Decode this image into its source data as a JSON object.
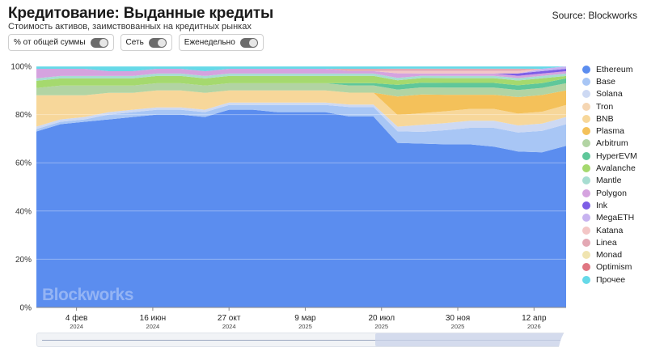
{
  "header": {
    "title": "Кредитование: Выданные кредиты",
    "subtitle": "Стоимость активов, заимствованных на кредитных рынках",
    "source": "Source: Blockworks"
  },
  "toggles": [
    {
      "label": "% от общей суммы",
      "on": true
    },
    {
      "label": "Сеть",
      "on": true
    },
    {
      "label": "Еженедельно",
      "on": true
    }
  ],
  "watermark": "Blockworks",
  "chart_data": {
    "type": "area",
    "stacked": true,
    "normalized_percent": true,
    "title": "Кредитование: Выданные кредиты",
    "subtitle": "Стоимость активов, заимствованных на кредитных рынках",
    "xlabel": "",
    "ylabel": "",
    "ylim": [
      0,
      100
    ],
    "yticks": [
      "0%",
      "20%",
      "40%",
      "60%",
      "80%",
      "100%"
    ],
    "xticks": [
      {
        "date": "2024-02-04",
        "label": "4 фев",
        "year": "2024"
      },
      {
        "date": "2024-06-16",
        "label": "16 июн",
        "year": "2024"
      },
      {
        "date": "2024-10-27",
        "label": "27 окт",
        "year": "2024"
      },
      {
        "date": "2025-03-09",
        "label": "9 мар",
        "year": "2025"
      },
      {
        "date": "2025-07-20",
        "label": "20 июл",
        "year": "2025"
      },
      {
        "date": "2025-11-30",
        "label": "30 ноя",
        "year": "2025"
      },
      {
        "date": "2026-04-12",
        "label": "12 апр",
        "year": "2026"
      }
    ],
    "x": [
      "2023-11-26",
      "2024-01-07",
      "2024-02-18",
      "2024-03-31",
      "2024-05-12",
      "2024-06-23",
      "2024-08-04",
      "2024-09-15",
      "2024-10-27",
      "2024-12-08",
      "2025-01-19",
      "2025-03-02",
      "2025-04-13",
      "2025-05-25",
      "2025-07-06",
      "2025-08-17",
      "2025-09-28",
      "2025-11-09",
      "2025-12-21",
      "2026-02-01",
      "2026-03-15",
      "2026-04-26",
      "2026-06-07"
    ],
    "legend_position": "right",
    "grid": true,
    "series": [
      {
        "name": "Ethereum",
        "color": "#5b8def",
        "icon": "ethereum-icon",
        "values": [
          73,
          76,
          77,
          78,
          79,
          80,
          80,
          79,
          82,
          82,
          81,
          81,
          81,
          80,
          80,
          71,
          70,
          69,
          69,
          68,
          66,
          65,
          67
        ]
      },
      {
        "name": "Base",
        "color": "#a8c6f5",
        "icon": "base-icon",
        "values": [
          1,
          1,
          1,
          2,
          2,
          2,
          2,
          2,
          2,
          2,
          3,
          3,
          3,
          4,
          4,
          5,
          5,
          6,
          7,
          8,
          8,
          9,
          9
        ]
      },
      {
        "name": "Solana",
        "color": "#cdd9f3",
        "icon": "solana-icon",
        "values": [
          1,
          1,
          1,
          1,
          1,
          1,
          1,
          1,
          1,
          1,
          1,
          1,
          1,
          1,
          1,
          2,
          3,
          3,
          3,
          3,
          3,
          3,
          3
        ]
      },
      {
        "name": "Tron",
        "color": "#f5d6b3",
        "icon": "tron-icon",
        "values": [
          0,
          0,
          0,
          0,
          0,
          0,
          0,
          0,
          0,
          0,
          0,
          0,
          0,
          0,
          0,
          0,
          0,
          0,
          0,
          0,
          0,
          0,
          0
        ]
      },
      {
        "name": "BNB",
        "color": "#f7d79a",
        "icon": "bnb-icon",
        "values": [
          13,
          10,
          9,
          8,
          7,
          7,
          7,
          7,
          5,
          5,
          5,
          5,
          5,
          5,
          5,
          5,
          5,
          5,
          5,
          5,
          5,
          5,
          5
        ]
      },
      {
        "name": "Plasma",
        "color": "#f4c15a",
        "icon": "plasma-icon",
        "values": [
          0,
          0,
          0,
          0,
          0,
          0,
          0,
          0,
          0,
          0,
          0,
          0,
          0,
          0,
          0,
          8,
          8,
          7,
          6,
          6,
          7,
          7,
          6
        ]
      },
      {
        "name": "Arbitrum",
        "color": "#b2d4a3",
        "icon": "arbitrum-icon",
        "values": [
          3,
          4,
          4,
          3,
          3,
          3,
          3,
          3,
          3,
          3,
          3,
          3,
          3,
          3,
          3,
          3,
          3,
          3,
          3,
          3,
          3,
          3,
          3
        ]
      },
      {
        "name": "HyperEVM",
        "color": "#5fc79a",
        "icon": "hyperevm-icon",
        "values": [
          0,
          0,
          0,
          0,
          0,
          0,
          0,
          0,
          0,
          0,
          0,
          0,
          0,
          1,
          1,
          2,
          2,
          2,
          2,
          2,
          2,
          2,
          2
        ]
      },
      {
        "name": "Avalanche",
        "color": "#a5d96e",
        "icon": "avalanche-icon",
        "values": [
          3,
          3,
          3,
          3,
          3,
          3,
          3,
          3,
          3,
          3,
          3,
          3,
          3,
          3,
          3,
          2,
          2,
          2,
          2,
          2,
          2,
          2,
          1
        ]
      },
      {
        "name": "Mantle",
        "color": "#a7ddd1",
        "icon": "mantle-icon",
        "values": [
          1,
          1,
          1,
          1,
          1,
          1,
          1,
          1,
          1,
          1,
          1,
          1,
          1,
          1,
          1,
          1,
          1,
          1,
          1,
          1,
          1,
          1,
          1
        ]
      },
      {
        "name": "Polygon",
        "color": "#d5a3df",
        "icon": "polygon-icon",
        "values": [
          4,
          3,
          3,
          2,
          2,
          2,
          2,
          2,
          2,
          2,
          2,
          2,
          2,
          1,
          1,
          2,
          1,
          1,
          1,
          1,
          1,
          1,
          1
        ]
      },
      {
        "name": "Ink",
        "color": "#7d5ee6",
        "icon": "ink-icon",
        "values": [
          0,
          0,
          0,
          0,
          0,
          0,
          0,
          0,
          0,
          0,
          0,
          0,
          0,
          0,
          0,
          0,
          0,
          0,
          0,
          0,
          1,
          1,
          1
        ]
      },
      {
        "name": "MegaETH",
        "color": "#c7b3f0",
        "icon": "megaeth-icon",
        "values": [
          0,
          0,
          0,
          0,
          0,
          0,
          0,
          0,
          0,
          0,
          0,
          0,
          0,
          0,
          0,
          0,
          0,
          0,
          0,
          0,
          0,
          1,
          1
        ]
      },
      {
        "name": "Katana",
        "color": "#f3c6c6",
        "icon": "katana-icon",
        "values": [
          0,
          0,
          0,
          0,
          0,
          0,
          0,
          0,
          0,
          0,
          0,
          0,
          0,
          0,
          0,
          1,
          1,
          1,
          1,
          1,
          1,
          0,
          0
        ]
      },
      {
        "name": "Linea",
        "color": "#e3a8b4",
        "icon": "linea-icon",
        "values": [
          0,
          0,
          0,
          0,
          0,
          0,
          0,
          0,
          0,
          0,
          0,
          0,
          0,
          1,
          1,
          1,
          1,
          1,
          1,
          1,
          1,
          0,
          0
        ]
      },
      {
        "name": "Monad",
        "color": "#f0e4b0",
        "icon": "monad-icon",
        "values": [
          0,
          0,
          0,
          0,
          0,
          0,
          0,
          0,
          0,
          0,
          0,
          0,
          0,
          0,
          0,
          0,
          0,
          0,
          0,
          0,
          0,
          0,
          0
        ]
      },
      {
        "name": "Optimism",
        "color": "#e07682",
        "icon": "optimism-icon",
        "values": [
          0,
          0,
          0,
          0,
          0,
          0,
          0,
          0,
          0,
          0,
          0,
          0,
          0,
          0,
          0,
          0,
          0,
          0,
          0,
          0,
          0,
          0,
          0
        ]
      },
      {
        "name": "Прочее",
        "color": "#66d9e8",
        "icon": "other-icon",
        "values": [
          1,
          1,
          1,
          2,
          2,
          1,
          1,
          2,
          1,
          1,
          1,
          1,
          1,
          1,
          1,
          1,
          1,
          1,
          1,
          1,
          1,
          1,
          0
        ]
      }
    ]
  }
}
